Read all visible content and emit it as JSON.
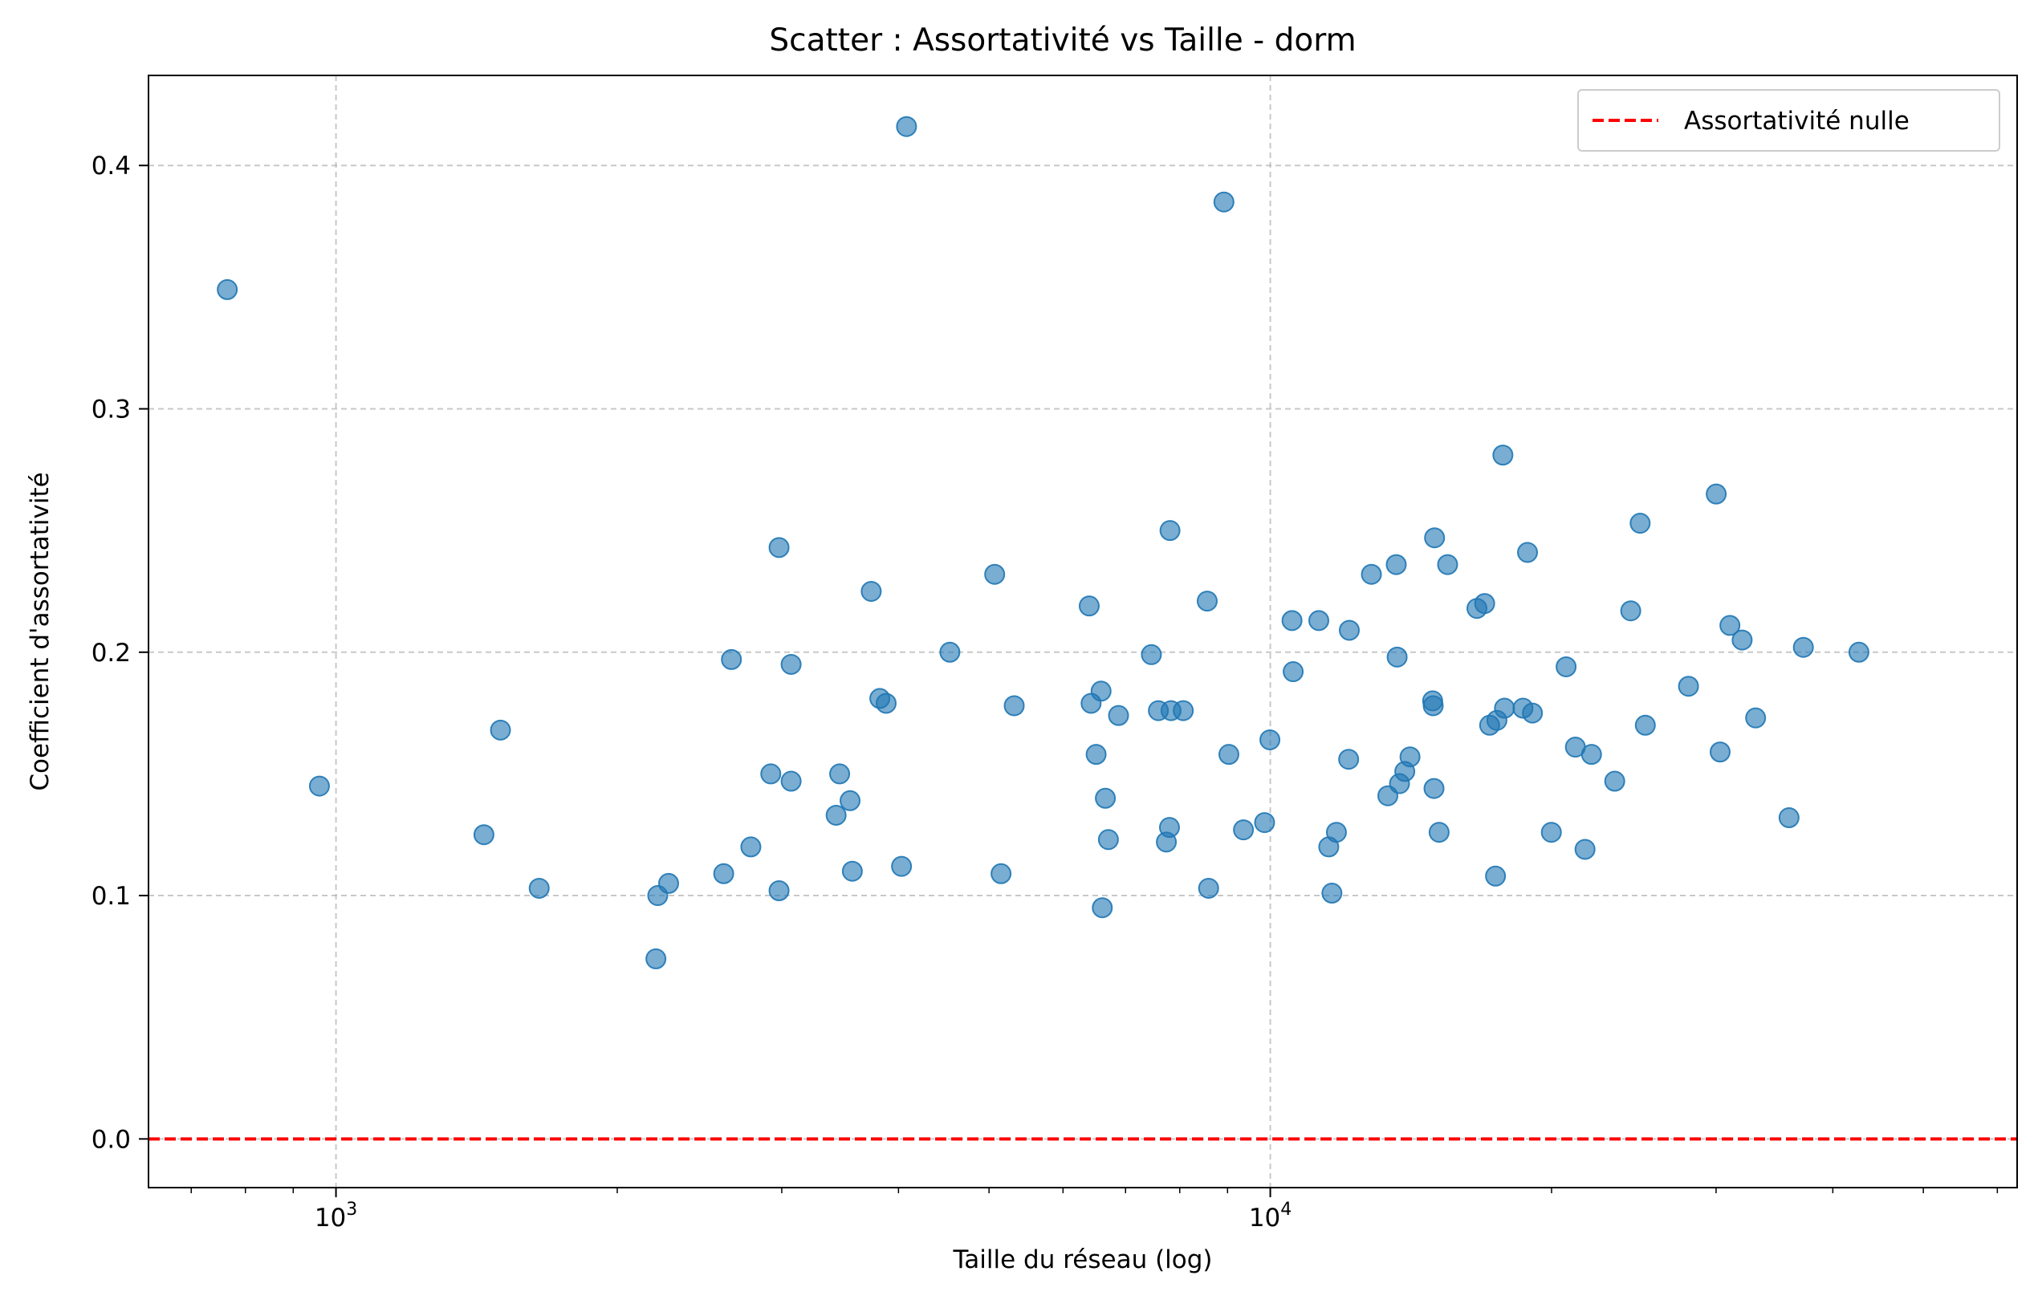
{
  "chart_data": {
    "type": "scatter",
    "title": "Scatter : Assortativité vs Taille - dorm",
    "xlabel": "Taille du réseau (log)",
    "ylabel": "Coefficient d'assortativité",
    "x_scale": "log",
    "xlim": [
      630,
      63000
    ],
    "ylim": [
      -0.02,
      0.437
    ],
    "x_ticks": [
      {
        "value": 1000,
        "base": "10",
        "exp": "3"
      },
      {
        "value": 10000,
        "base": "10",
        "exp": "4"
      }
    ],
    "y_ticks": [
      {
        "value": 0.0,
        "label": "0.0"
      },
      {
        "value": 0.1,
        "label": "0.1"
      },
      {
        "value": 0.2,
        "label": "0.2"
      },
      {
        "value": 0.3,
        "label": "0.3"
      },
      {
        "value": 0.4,
        "label": "0.4"
      }
    ],
    "grid": true,
    "legend": {
      "position": "top-right",
      "entries": [
        {
          "label": "Assortativité nulle",
          "color": "#ff0000",
          "style": "dashed"
        }
      ]
    },
    "reference_line": {
      "y": 0,
      "color": "#ff0000",
      "label": "Assortativité nulle"
    },
    "point_color": "#1f77b4",
    "points": [
      [
        765,
        0.349
      ],
      [
        960,
        0.145
      ],
      [
        1440,
        0.125
      ],
      [
        1500,
        0.168
      ],
      [
        1650,
        0.103
      ],
      [
        2200,
        0.074
      ],
      [
        2210,
        0.1
      ],
      [
        2270,
        0.105
      ],
      [
        2600,
        0.109
      ],
      [
        2650,
        0.197
      ],
      [
        2780,
        0.12
      ],
      [
        2920,
        0.15
      ],
      [
        2980,
        0.243
      ],
      [
        2980,
        0.102
      ],
      [
        3070,
        0.195
      ],
      [
        3070,
        0.147
      ],
      [
        3430,
        0.133
      ],
      [
        3460,
        0.15
      ],
      [
        3550,
        0.139
      ],
      [
        3570,
        0.11
      ],
      [
        3740,
        0.225
      ],
      [
        3820,
        0.181
      ],
      [
        3880,
        0.179
      ],
      [
        4030,
        0.112
      ],
      [
        4080,
        0.416
      ],
      [
        4540,
        0.2
      ],
      [
        5070,
        0.232
      ],
      [
        5150,
        0.109
      ],
      [
        5320,
        0.178
      ],
      [
        6400,
        0.219
      ],
      [
        6430,
        0.179
      ],
      [
        6510,
        0.158
      ],
      [
        6590,
        0.184
      ],
      [
        6610,
        0.095
      ],
      [
        6660,
        0.14
      ],
      [
        6710,
        0.123
      ],
      [
        6880,
        0.174
      ],
      [
        7460,
        0.199
      ],
      [
        7590,
        0.176
      ],
      [
        7740,
        0.122
      ],
      [
        7800,
        0.128
      ],
      [
        7810,
        0.25
      ],
      [
        7830,
        0.176
      ],
      [
        8070,
        0.176
      ],
      [
        8560,
        0.221
      ],
      [
        8590,
        0.103
      ],
      [
        8920,
        0.385
      ],
      [
        9030,
        0.158
      ],
      [
        9360,
        0.127
      ],
      [
        9860,
        0.13
      ],
      [
        9990,
        0.164
      ],
      [
        10550,
        0.213
      ],
      [
        10580,
        0.192
      ],
      [
        11270,
        0.213
      ],
      [
        11550,
        0.12
      ],
      [
        11640,
        0.101
      ],
      [
        11770,
        0.126
      ],
      [
        12130,
        0.156
      ],
      [
        12150,
        0.209
      ],
      [
        12830,
        0.232
      ],
      [
        13360,
        0.141
      ],
      [
        13640,
        0.236
      ],
      [
        13670,
        0.198
      ],
      [
        13750,
        0.146
      ],
      [
        13930,
        0.151
      ],
      [
        14110,
        0.157
      ],
      [
        14920,
        0.18
      ],
      [
        14940,
        0.178
      ],
      [
        14970,
        0.144
      ],
      [
        14990,
        0.247
      ],
      [
        15160,
        0.126
      ],
      [
        15480,
        0.236
      ],
      [
        16640,
        0.218
      ],
      [
        16960,
        0.22
      ],
      [
        17170,
        0.17
      ],
      [
        17420,
        0.108
      ],
      [
        17480,
        0.172
      ],
      [
        17740,
        0.281
      ],
      [
        17810,
        0.177
      ],
      [
        18640,
        0.177
      ],
      [
        18850,
        0.241
      ],
      [
        19080,
        0.175
      ],
      [
        19990,
        0.126
      ],
      [
        20730,
        0.194
      ],
      [
        21210,
        0.161
      ],
      [
        21720,
        0.119
      ],
      [
        22070,
        0.158
      ],
      [
        23370,
        0.147
      ],
      [
        24310,
        0.217
      ],
      [
        24880,
        0.253
      ],
      [
        25200,
        0.17
      ],
      [
        28030,
        0.186
      ],
      [
        30010,
        0.265
      ],
      [
        30300,
        0.159
      ],
      [
        31040,
        0.211
      ],
      [
        31990,
        0.205
      ],
      [
        33070,
        0.173
      ],
      [
        35910,
        0.132
      ],
      [
        37200,
        0.202
      ],
      [
        42660,
        0.2
      ]
    ]
  }
}
